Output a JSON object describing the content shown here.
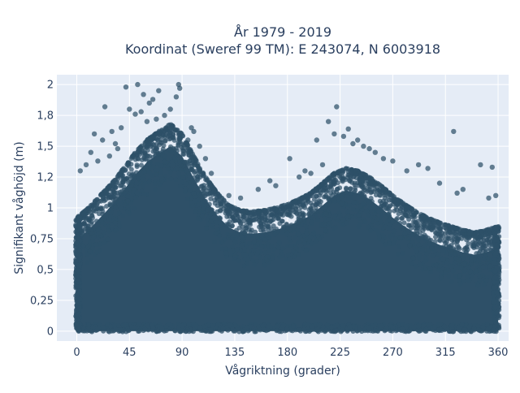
{
  "chart_data": {
    "type": "scatter",
    "title": [
      "År 1979 - 2019",
      "Koordinat (Sweref 99 TM): E 243074, N 6003918"
    ],
    "xlabel": "Vågriktning (grader)",
    "ylabel": "Signifikant våghöjd (m)",
    "xlim": [
      -17,
      369
    ],
    "ylim": [
      -0.08,
      2.08
    ],
    "x_ticks": [
      0,
      45,
      90,
      135,
      180,
      225,
      270,
      315,
      360
    ],
    "x_tick_labels": [
      "0",
      "45",
      "90",
      "135",
      "180",
      "225",
      "270",
      "315",
      "360"
    ],
    "y_ticks": [
      0,
      0.25,
      0.5,
      0.75,
      1,
      1.25,
      1.5,
      1.75,
      2
    ],
    "y_tick_labels": [
      "0",
      "0,25",
      "0,5",
      "0,75",
      "1",
      "1,2",
      "1,5",
      "1,8",
      "2"
    ],
    "grid": true,
    "marker_color": "#2e5068",
    "plot_background": "#e5ecf6",
    "upper_envelope": {
      "direction": [
        0,
        10,
        20,
        30,
        40,
        50,
        60,
        70,
        80,
        90,
        100,
        110,
        120,
        130,
        140,
        150,
        160,
        170,
        180,
        190,
        200,
        210,
        220,
        230,
        240,
        250,
        260,
        270,
        280,
        290,
        300,
        310,
        320,
        330,
        340,
        350,
        360
      ],
      "height": [
        0.92,
        1.0,
        1.1,
        1.2,
        1.32,
        1.45,
        1.55,
        1.62,
        1.68,
        1.6,
        1.42,
        1.25,
        1.12,
        1.02,
        0.98,
        0.97,
        0.98,
        1.0,
        1.03,
        1.07,
        1.12,
        1.2,
        1.28,
        1.32,
        1.3,
        1.25,
        1.18,
        1.1,
        1.03,
        0.97,
        0.92,
        0.88,
        0.85,
        0.82,
        0.8,
        0.82,
        0.85
      ]
    },
    "outliers": [
      {
        "x": 42,
        "y": 1.98
      },
      {
        "x": 52,
        "y": 2.0
      },
      {
        "x": 57,
        "y": 1.92
      },
      {
        "x": 62,
        "y": 1.85
      },
      {
        "x": 65,
        "y": 1.88
      },
      {
        "x": 70,
        "y": 1.95
      },
      {
        "x": 85,
        "y": 1.9
      },
      {
        "x": 87,
        "y": 2.0
      },
      {
        "x": 88,
        "y": 1.97
      },
      {
        "x": 80,
        "y": 1.8
      },
      {
        "x": 75,
        "y": 1.75
      },
      {
        "x": 55,
        "y": 1.78
      },
      {
        "x": 45,
        "y": 1.8
      },
      {
        "x": 50,
        "y": 1.76
      },
      {
        "x": 24,
        "y": 1.82
      },
      {
        "x": 15,
        "y": 1.6
      },
      {
        "x": 30,
        "y": 1.62
      },
      {
        "x": 38,
        "y": 1.65
      },
      {
        "x": 22,
        "y": 1.55
      },
      {
        "x": 33,
        "y": 1.52
      },
      {
        "x": 8,
        "y": 1.35
      },
      {
        "x": 12,
        "y": 1.45
      },
      {
        "x": 3,
        "y": 1.3
      },
      {
        "x": 100,
        "y": 1.62
      },
      {
        "x": 105,
        "y": 1.5
      },
      {
        "x": 110,
        "y": 1.4
      },
      {
        "x": 115,
        "y": 1.28
      },
      {
        "x": 95,
        "y": 1.55
      },
      {
        "x": 98,
        "y": 1.65
      },
      {
        "x": 130,
        "y": 1.1
      },
      {
        "x": 140,
        "y": 1.08
      },
      {
        "x": 155,
        "y": 1.15
      },
      {
        "x": 165,
        "y": 1.22
      },
      {
        "x": 170,
        "y": 1.18
      },
      {
        "x": 182,
        "y": 1.4
      },
      {
        "x": 190,
        "y": 1.25
      },
      {
        "x": 205,
        "y": 1.55
      },
      {
        "x": 215,
        "y": 1.7
      },
      {
        "x": 220,
        "y": 1.6
      },
      {
        "x": 222,
        "y": 1.82
      },
      {
        "x": 228,
        "y": 1.58
      },
      {
        "x": 232,
        "y": 1.64
      },
      {
        "x": 236,
        "y": 1.52
      },
      {
        "x": 240,
        "y": 1.55
      },
      {
        "x": 245,
        "y": 1.5
      },
      {
        "x": 255,
        "y": 1.45
      },
      {
        "x": 262,
        "y": 1.4
      },
      {
        "x": 270,
        "y": 1.38
      },
      {
        "x": 282,
        "y": 1.3
      },
      {
        "x": 292,
        "y": 1.35
      },
      {
        "x": 300,
        "y": 1.32
      },
      {
        "x": 310,
        "y": 1.2
      },
      {
        "x": 322,
        "y": 1.62
      },
      {
        "x": 330,
        "y": 1.15
      },
      {
        "x": 345,
        "y": 1.35
      },
      {
        "x": 355,
        "y": 1.33
      },
      {
        "x": 358,
        "y": 1.1
      },
      {
        "x": 352,
        "y": 1.08
      },
      {
        "x": 325,
        "y": 1.12
      },
      {
        "x": 200,
        "y": 1.28
      },
      {
        "x": 210,
        "y": 1.35
      },
      {
        "x": 195,
        "y": 1.3
      },
      {
        "x": 250,
        "y": 1.48
      },
      {
        "x": 60,
        "y": 1.7
      },
      {
        "x": 68,
        "y": 1.72
      },
      {
        "x": 35,
        "y": 1.48
      },
      {
        "x": 28,
        "y": 1.42
      },
      {
        "x": 18,
        "y": 1.38
      }
    ]
  }
}
